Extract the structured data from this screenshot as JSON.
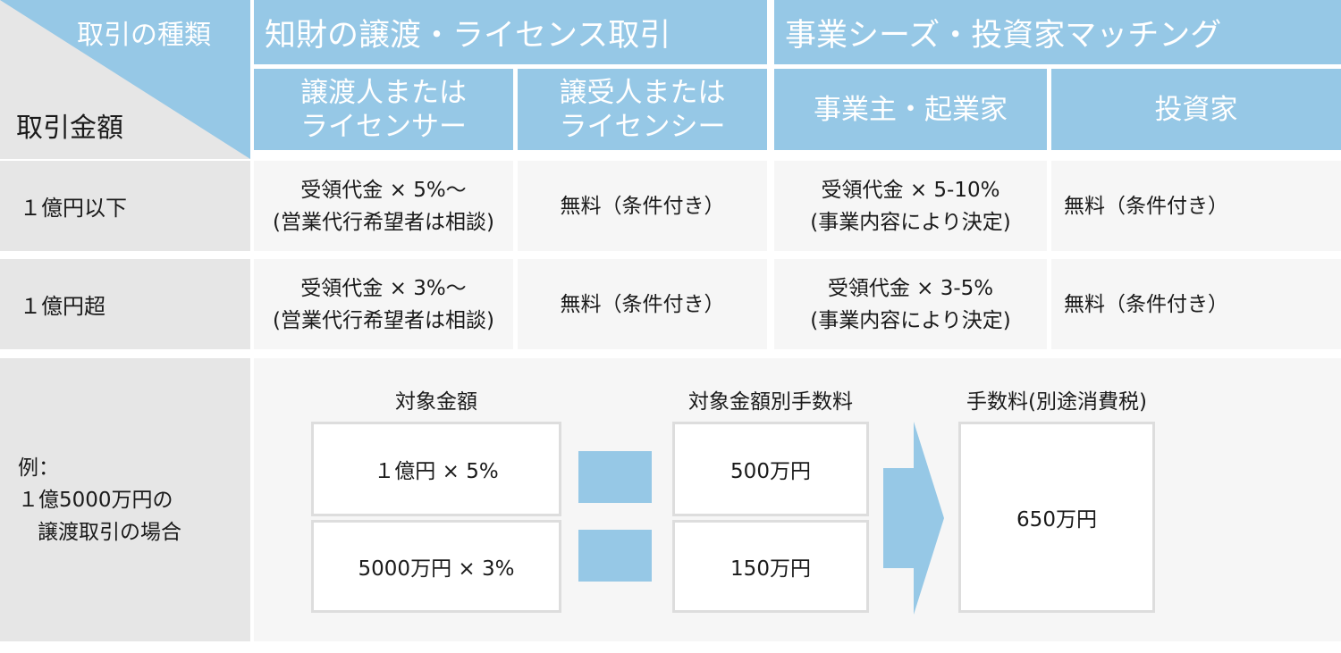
{
  "corner": {
    "type_label": "取引の種類",
    "amount_label": "取引金額"
  },
  "header": {
    "group1": "知財の譲渡・ライセンス取引",
    "group2": "事業シーズ・投資家マッチング",
    "cols": [
      {
        "line1": "譲渡人または",
        "line2": "ライセンサー"
      },
      {
        "line1": "譲受人または",
        "line2": "ライセンシー"
      },
      {
        "line1": "事業主・起業家",
        "line2": ""
      },
      {
        "line1": "投資家",
        "line2": ""
      }
    ]
  },
  "rows": [
    {
      "label": "１億円以下",
      "c1_line1": "受領代金 × 5%〜",
      "c1_line2": "(営業代行希望者は相談)",
      "c2": "無料（条件付き）",
      "c3_line1": "受領代金 × 5-10%",
      "c3_line2": "(事業内容により決定)",
      "c4": "無料（条件付き）"
    },
    {
      "label": "１億円超",
      "c1_line1": "受領代金 × 3%〜",
      "c1_line2": "(営業代行希望者は相談)",
      "c2": "無料（条件付き）",
      "c3_line1": "受領代金 × 3-5%",
      "c3_line2": "(事業内容により決定)",
      "c4": "無料（条件付き）"
    }
  ],
  "example": {
    "label_line1": "例：",
    "label_line2": "１億5000万円の",
    "label_line3": "譲渡取引の場合",
    "head_target": "対象金額",
    "head_fee_by_amount": "対象金額別手数料",
    "head_fee_total": "手数料(別途消費税)",
    "calc1": "１億円 × 5%",
    "calc2": "5000万円 × 3%",
    "fee1": "500万円",
    "fee2": "150万円",
    "total": "650万円"
  },
  "colors": {
    "accent": "#96c8e6",
    "gray": "#e6e6e6",
    "light": "#f6f6f6"
  }
}
